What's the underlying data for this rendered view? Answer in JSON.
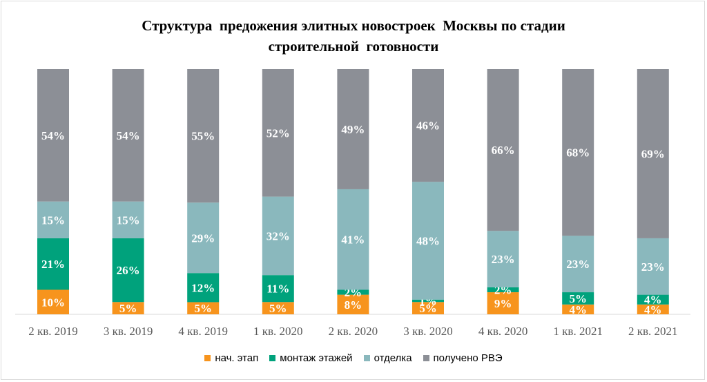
{
  "chart_data": {
    "type": "bar",
    "stacked": true,
    "normalized": true,
    "title_lines": [
      "Структура  предожения элитных новостроек  Москвы по стадии",
      "строительной  готовности"
    ],
    "categories": [
      "2 кв. 2019",
      "3 кв. 2019",
      "4 кв. 2019",
      "1 кв. 2020",
      "2 кв. 2020",
      "3 кв. 2020",
      "4 кв. 2020",
      "1 кв. 2021",
      "2 кв. 2021"
    ],
    "series": [
      {
        "name": "нач. этап",
        "color": "#f7941d",
        "values": [
          10,
          5,
          5,
          5,
          8,
          5,
          9,
          4,
          4
        ]
      },
      {
        "name": "монтаж этажей",
        "color": "#00a27c",
        "values": [
          21,
          26,
          12,
          11,
          2,
          1,
          2,
          5,
          4
        ]
      },
      {
        "name": "отделка",
        "color": "#8ab8bd",
        "values": [
          15,
          15,
          29,
          32,
          41,
          48,
          23,
          23,
          23
        ]
      },
      {
        "name": "получено РВЭ",
        "color": "#8c8f96",
        "values": [
          54,
          54,
          55,
          52,
          49,
          46,
          66,
          68,
          69
        ]
      }
    ],
    "value_suffix": "%",
    "legend_position": "bottom",
    "grid": false
  }
}
